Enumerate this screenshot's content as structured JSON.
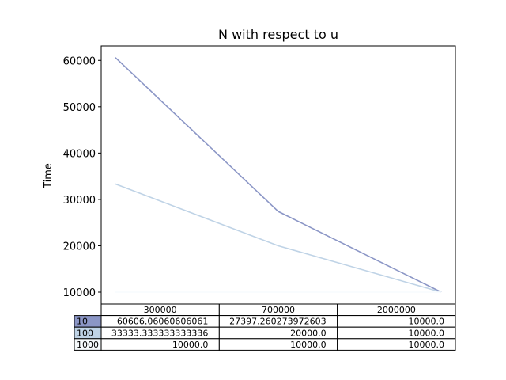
{
  "chart_data": {
    "type": "line",
    "title": "N with respect to u",
    "xlabel": "",
    "ylabel": "Time",
    "categories": [
      "300000",
      "700000",
      "2000000"
    ],
    "series": [
      {
        "name": "10",
        "color": "#8b96c6",
        "values": [
          60606.06060606061,
          27397.260273972603,
          10000.0
        ],
        "labels": [
          "60606.06060606061",
          "27397.260273972603",
          "10000.0"
        ]
      },
      {
        "name": "100",
        "color": "#bfd3e6",
        "values": [
          33333.333333333336,
          20000.0,
          10000.0
        ],
        "labels": [
          "33333.333333333336",
          "20000.0",
          "10000.0"
        ]
      },
      {
        "name": "1000",
        "color": "#f7fbfd",
        "values": [
          10000.0,
          10000.0,
          10000.0
        ],
        "labels": [
          "10000.0",
          "10000.0",
          "10000.0"
        ]
      }
    ],
    "yticks": [
      10000,
      20000,
      30000,
      40000,
      50000,
      60000
    ],
    "ylim": [
      7440,
      63120
    ],
    "grid": false,
    "legend": "table-below"
  }
}
